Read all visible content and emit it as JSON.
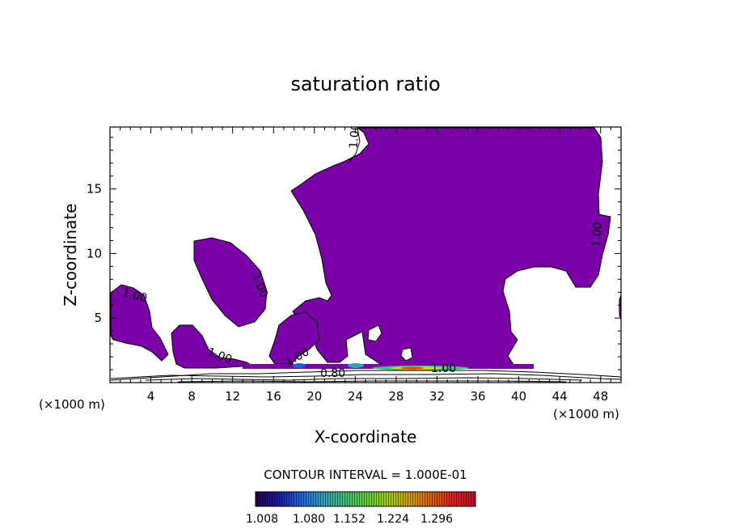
{
  "chart_data": {
    "type": "heatmap",
    "title": "saturation ratio",
    "xlabel": "X-coordinate",
    "ylabel": "Z-coordinate",
    "x_unit_left": "(×1000 m)",
    "x_unit_right": "(×1000 m)",
    "xlim": [
      0,
      50
    ],
    "ylim": [
      0,
      19.8
    ],
    "x_ticks": [
      4,
      8,
      12,
      16,
      20,
      24,
      28,
      32,
      36,
      40,
      44,
      48
    ],
    "y_ticks": [
      5,
      10,
      15
    ],
    "contour_labels": [
      "1.00",
      "1.00",
      "1.00",
      "1.00",
      "1.00",
      "1.00",
      "1.00",
      "0.80"
    ],
    "contour_interval_text": "CONTOUR INTERVAL = 1.000E-01",
    "colorbar_ticks": [
      "1.008",
      "1.080",
      "1.152",
      "1.224",
      "1.296"
    ],
    "fill_color": "#7a00a8",
    "colorbar_colors": [
      "#2a0050",
      "#1a1aa0",
      "#2060e0",
      "#30a0c0",
      "#40c080",
      "#60d040",
      "#a0d000",
      "#d0a000",
      "#e06000",
      "#e02020",
      "#c01030"
    ]
  }
}
